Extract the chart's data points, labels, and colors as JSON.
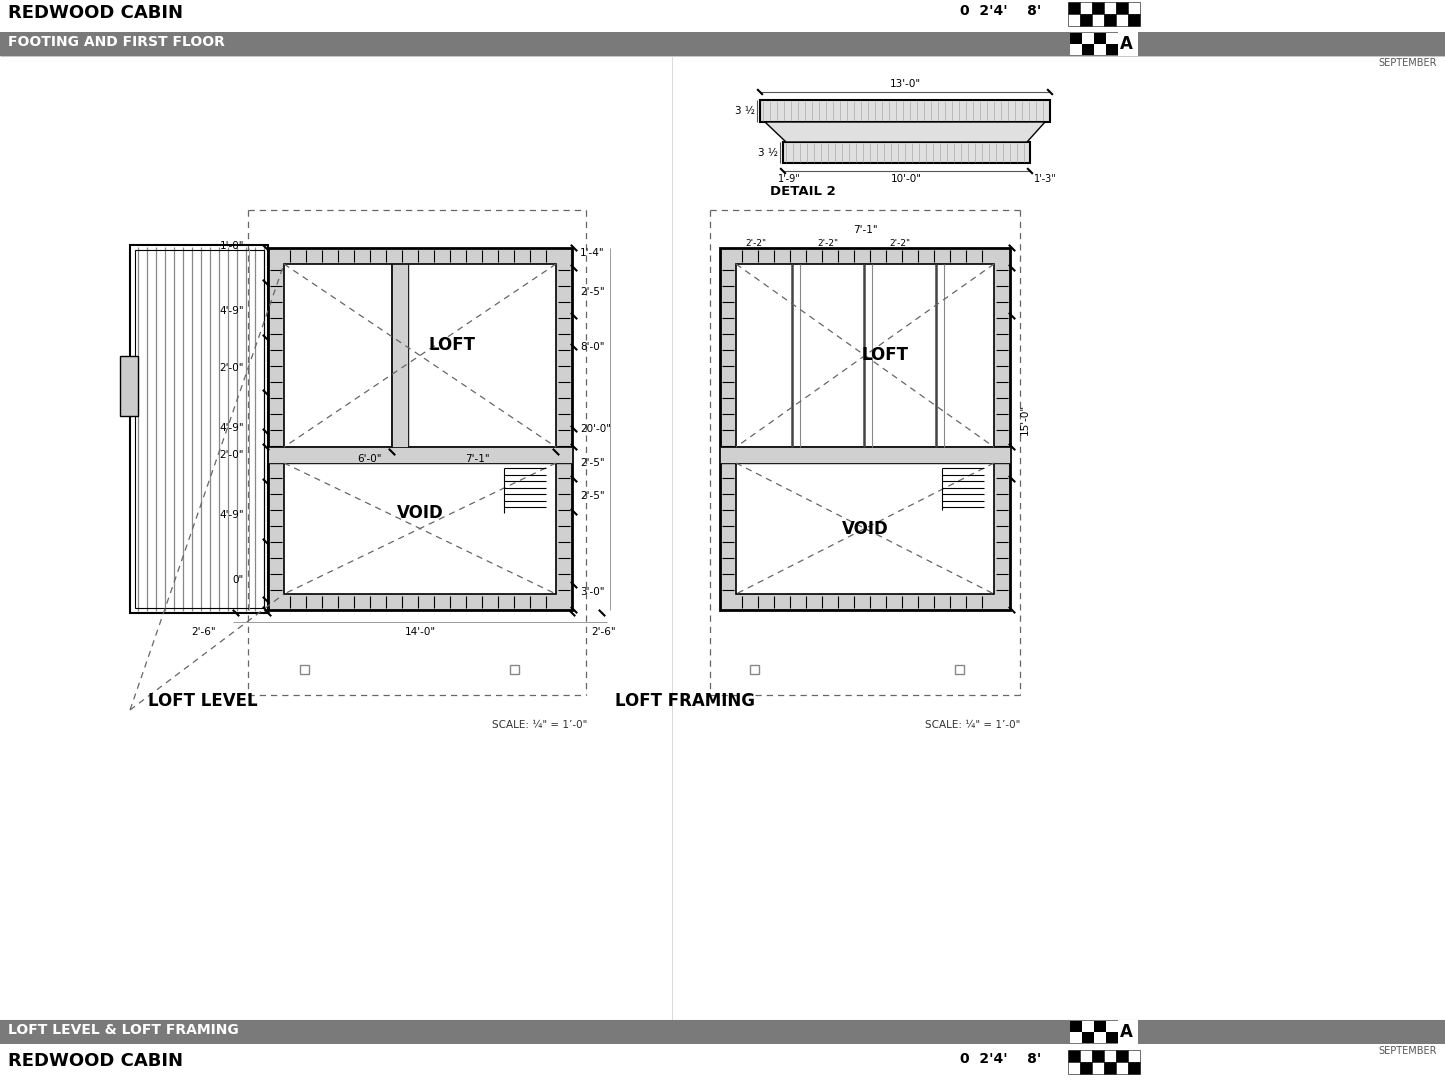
{
  "title_top": "REDWOOD CABIN",
  "subtitle_top": "FOOTING AND FIRST FLOOR",
  "title_bottom": "REDWOOD CABIN",
  "subtitle_bottom": "LOFT LEVEL & LOFT FRAMING",
  "scale_note": "SCALE: ¼\" = 1’-0\"",
  "date_note": "SEPTEMBER",
  "scale_bar": "0  2’4’   8’",
  "header_bg": "#7a7a7a",
  "bg_color": "#e8e8e8",
  "drawing_bg": "#ffffff",
  "line_color": "#000000",
  "dashed_color": "#666666",
  "dim_color": "#000000",
  "left_plan_label": "LOFT LEVEL",
  "right_plan_label": "LOFT FRAMING",
  "detail_label": "DETAIL 2",
  "loft_label": "LOFT",
  "void_label": "VOID",
  "void_label2": "VOID"
}
